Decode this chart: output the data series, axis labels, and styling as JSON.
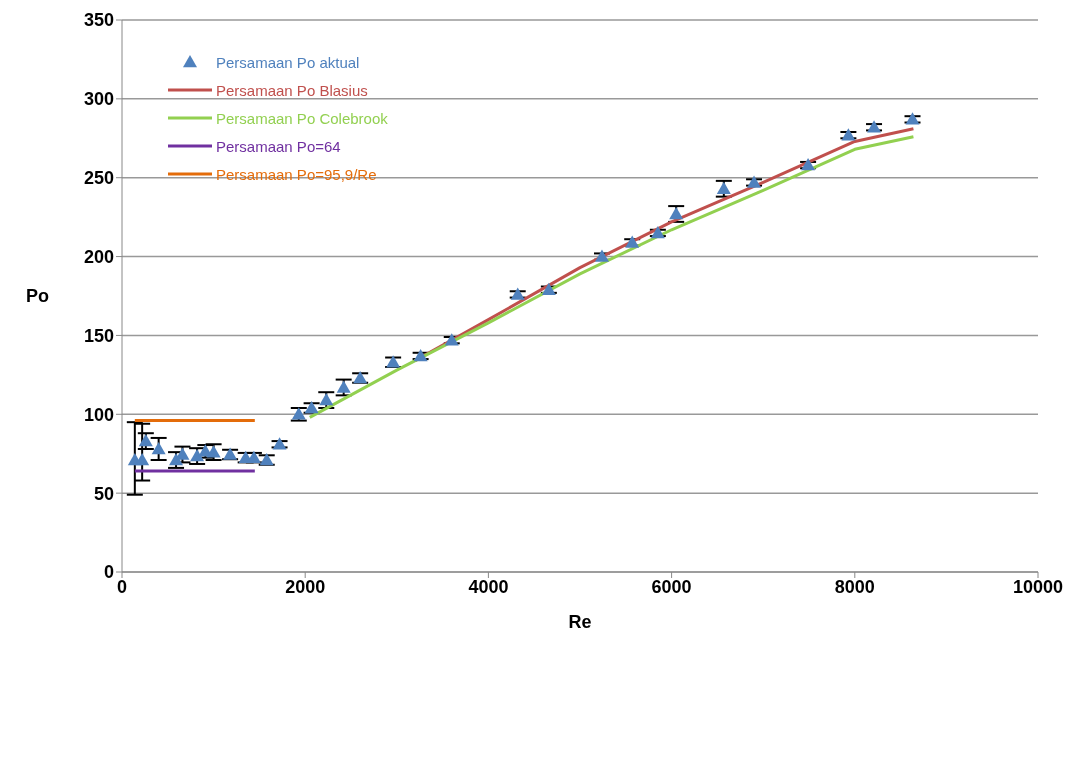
{
  "chart_data": {
    "type": "scatter",
    "xlabel": "Re",
    "ylabel": "Po",
    "xlim": [
      0,
      10000
    ],
    "xticks": [
      0,
      2000,
      4000,
      6000,
      8000,
      10000
    ],
    "ylim": [
      0,
      350
    ],
    "yticks": [
      0,
      50,
      100,
      150,
      200,
      250,
      300,
      350
    ],
    "grid": "y",
    "legend": "top left",
    "series": [
      {
        "name": "Persamaan Po aktual",
        "marker": "triangle",
        "color": "#4f81bd",
        "x": [
          140,
          220,
          260,
          400,
          590,
          660,
          820,
          910,
          1000,
          1180,
          1350,
          1440,
          1580,
          1720,
          1930,
          2070,
          2230,
          2420,
          2600,
          2960,
          3260,
          3600,
          4320,
          4660,
          5240,
          5570,
          5850,
          6050,
          6570,
          6900,
          7490,
          7930,
          8210,
          8630
        ],
        "values": [
          71,
          71,
          83,
          78,
          71,
          74.5,
          73.5,
          76.5,
          76,
          74.5,
          72.5,
          72.5,
          71,
          81,
          100,
          104,
          109,
          117,
          123,
          133,
          137,
          147,
          176,
          179,
          200,
          209,
          215,
          227,
          243,
          247,
          258,
          277,
          282,
          287
        ],
        "errors": [
          [
            49,
            95
          ],
          [
            58,
            94
          ],
          5,
          7,
          5,
          5,
          5,
          4,
          5,
          3,
          3,
          3,
          3,
          2,
          4,
          3,
          5,
          5,
          3,
          3,
          2,
          2,
          2,
          2,
          2,
          2,
          2,
          5,
          5,
          2,
          2,
          2,
          2,
          2
        ]
      },
      {
        "name": "Persamaan Po Blasius",
        "type": "line",
        "color": "#c0504d",
        "x": [
          3200,
          4000,
          5000,
          6000,
          7000,
          8000,
          8640
        ],
        "values": [
          134,
          160,
          193,
          222,
          247,
          273,
          281
        ]
      },
      {
        "name": "Persamaan Po Colebrook",
        "type": "line",
        "color": "#92d050",
        "x": [
          2050,
          3000,
          4000,
          5000,
          6000,
          7000,
          8000,
          8640
        ],
        "values": [
          98,
          128,
          158,
          189,
          217,
          242,
          268,
          276
        ]
      },
      {
        "name": "Persamaan Po=64",
        "type": "line",
        "color": "#7030a0",
        "x": [
          140,
          1450
        ],
        "values": [
          64,
          64
        ]
      },
      {
        "name": "Persamaan Po=95,9/Re",
        "type": "line",
        "color": "#e46c0a",
        "x": [
          140,
          1450
        ],
        "values": [
          96,
          96
        ]
      }
    ]
  }
}
